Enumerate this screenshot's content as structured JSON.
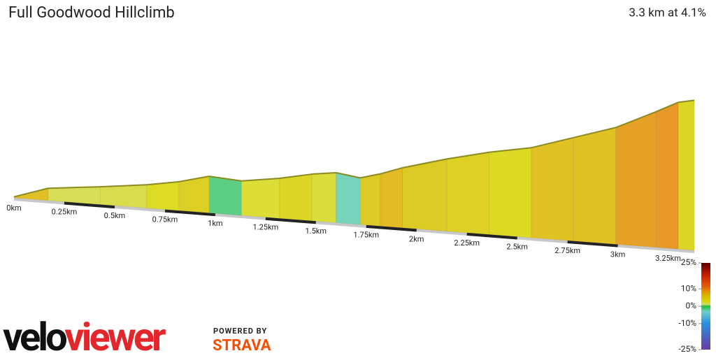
{
  "chart_data": {
    "type": "elevation-profile",
    "title": "Full Goodwood Hillclimb",
    "subtitle": "3.3 km at 4.1%",
    "x": [
      0,
      0.17,
      0.43,
      0.66,
      0.82,
      0.97,
      1.13,
      1.32,
      1.48,
      1.6,
      1.72,
      1.82,
      1.93,
      2.15,
      2.36,
      2.57,
      2.78,
      2.99,
      3.19,
      3.3,
      3.38
    ],
    "elevation": [
      1,
      11,
      16,
      21,
      26,
      33,
      31,
      36,
      42,
      45,
      42,
      47,
      54,
      65,
      74,
      81,
      93,
      105,
      122,
      132,
      135
    ],
    "xlim": [
      0,
      3.38
    ],
    "xticks": [
      {
        "value": 0,
        "label": "0km"
      },
      {
        "value": 0.25,
        "label": "0.25km"
      },
      {
        "value": 0.5,
        "label": "0.5km"
      },
      {
        "value": 0.75,
        "label": "0.75km"
      },
      {
        "value": 1,
        "label": "1km"
      },
      {
        "value": 1.25,
        "label": "1.25km"
      },
      {
        "value": 1.5,
        "label": "1.5km"
      },
      {
        "value": 1.75,
        "label": "1.75km"
      },
      {
        "value": 2,
        "label": "2km"
      },
      {
        "value": 2.25,
        "label": "2.25km"
      },
      {
        "value": 2.5,
        "label": "2.5km"
      },
      {
        "value": 2.75,
        "label": "2.75km"
      },
      {
        "value": 3,
        "label": "3km"
      },
      {
        "value": 3.25,
        "label": "3.25km"
      }
    ],
    "colorbar": {
      "clim": [
        -25,
        25
      ],
      "ticks": [
        {
          "value": 25,
          "label": "25%"
        },
        {
          "value": 10,
          "label": "10%"
        },
        {
          "value": 0,
          "label": "0%"
        },
        {
          "value": -10,
          "label": "-10%"
        },
        {
          "value": -25,
          "label": "-25%"
        }
      ],
      "stops": [
        [
          25,
          "#5a0000"
        ],
        [
          18,
          "#c81e00"
        ],
        [
          12,
          "#e2560a"
        ],
        [
          8,
          "#e39a00"
        ],
        [
          5,
          "#d8c200"
        ],
        [
          3,
          "#d8d800"
        ],
        [
          1,
          "#cdd870"
        ],
        [
          0,
          "#20c030"
        ],
        [
          -3,
          "#6dd0c8"
        ],
        [
          -10,
          "#2a8ee0"
        ],
        [
          -25,
          "#6a3aa8"
        ]
      ]
    }
  },
  "branding": {
    "logo_a": "velo",
    "logo_b": "viewer",
    "powered": "POWERED BY",
    "strava": "STRAVA"
  }
}
